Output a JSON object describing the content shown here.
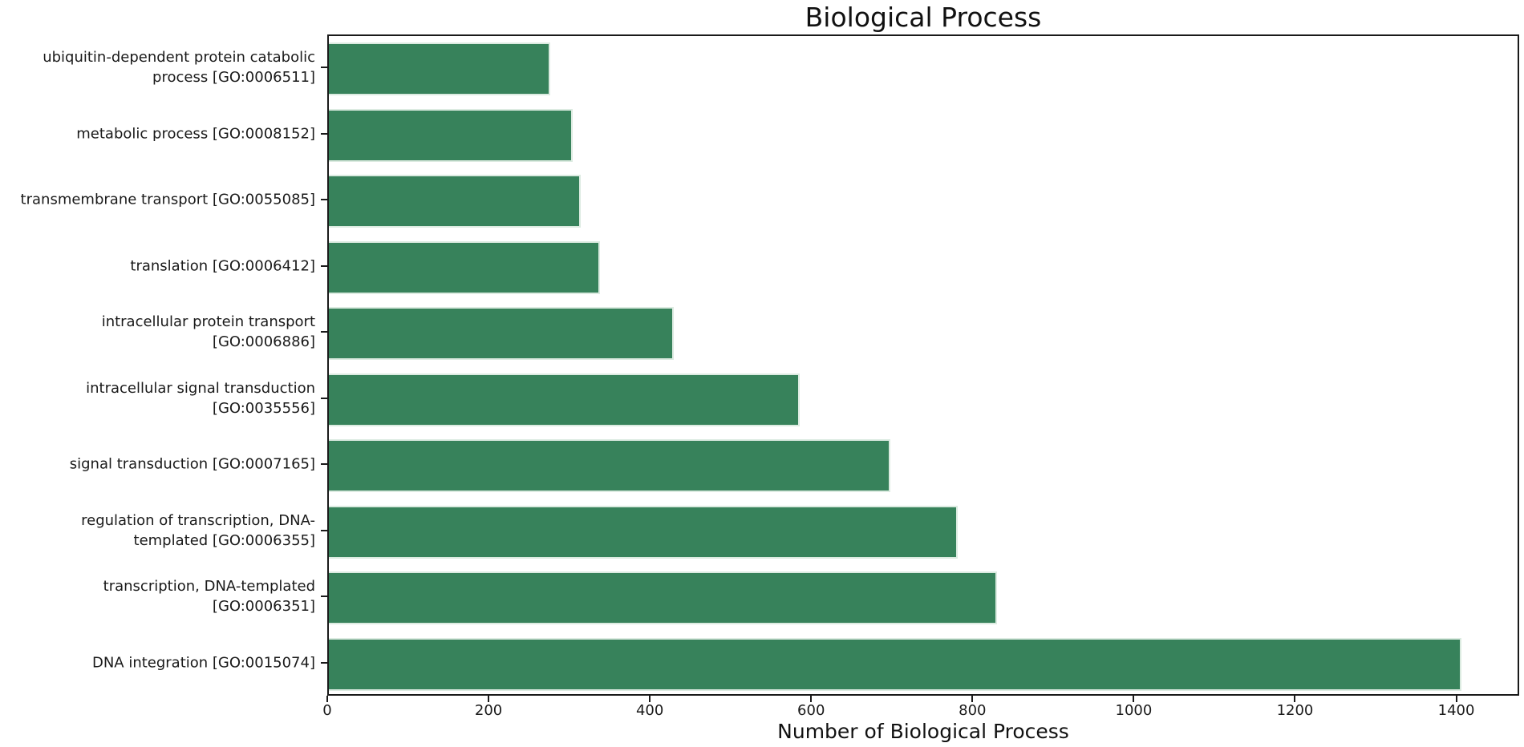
{
  "figure": {
    "title": "Biological Process",
    "xlabel": "Number of Biological Process",
    "background_color": "#ffffff",
    "bar_color": "#37825b",
    "bar_edge_color": "#dcebe1",
    "axis_color": "#1a1a1a"
  },
  "chart_data": {
    "type": "bar",
    "orientation": "horizontal",
    "title": "Biological Process",
    "xlabel": "Number of Biological Process",
    "ylabel": "",
    "grid": false,
    "legend_position": "none",
    "xlim": [
      0,
      1478
    ],
    "xticks": [
      0,
      200,
      400,
      600,
      800,
      1000,
      1200,
      1400
    ],
    "categories": [
      "ubiquitin-dependent protein catabolic\nprocess [GO:0006511]",
      "metabolic process [GO:0008152]",
      "transmembrane transport [GO:0055085]",
      "translation [GO:0006412]",
      "intracellular protein transport\n[GO:0006886]",
      "intracellular signal transduction\n[GO:0035556]",
      "signal transduction [GO:0007165]",
      "regulation of transcription, DNA-\ntemplated [GO:0006355]",
      "transcription, DNA-templated\n[GO:0006351]",
      "DNA integration [GO:0015074]"
    ],
    "values": [
      275,
      303,
      313,
      337,
      429,
      585,
      698,
      782,
      831,
      1408
    ]
  }
}
